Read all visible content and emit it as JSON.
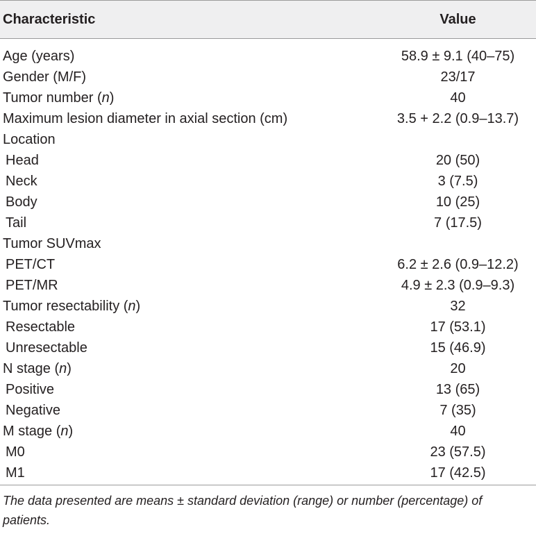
{
  "table": {
    "header": {
      "characteristic": "Characteristic",
      "value": "Value"
    },
    "rows": [
      {
        "label": "Age (years)",
        "value": "58.9 ± 9.1 (40–75)"
      },
      {
        "label": "Gender (M/F)",
        "value": "23/17"
      },
      {
        "label": "Tumor number (n)",
        "value": "40"
      },
      {
        "label": "Maximum lesion diameter in axial section (cm)",
        "value": "3.5 + 2.2 (0.9–13.7)"
      },
      {
        "label": "Location",
        "value": ""
      },
      {
        "label": "Head",
        "value": "20 (50)"
      },
      {
        "label": "Neck",
        "value": "3 (7.5)"
      },
      {
        "label": "Body",
        "value": "10 (25)"
      },
      {
        "label": "Tail",
        "value": "7 (17.5)"
      },
      {
        "label": "Tumor SUVmax",
        "value": ""
      },
      {
        "label": "PET/CT",
        "value": "6.2 ± 2.6 (0.9–12.2)"
      },
      {
        "label": "PET/MR",
        "value": "4.9 ± 2.3 (0.9–9.3)"
      },
      {
        "label": "Tumor resectability (n)",
        "value": "32"
      },
      {
        "label": "Resectable",
        "value": "17 (53.1)"
      },
      {
        "label": "Unresectable",
        "value": "15 (46.9)"
      },
      {
        "label": "N stage (n)",
        "value": "20"
      },
      {
        "label": "Positive",
        "value": "13 (65)"
      },
      {
        "label": "Negative",
        "value": "7 (35)"
      },
      {
        "label": "M stage (n)",
        "value": "40"
      },
      {
        "label": "M0",
        "value": "23 (57.5)"
      },
      {
        "label": "M1",
        "value": "17 (42.5)"
      }
    ],
    "footnote": "The data presented are means ± standard deviation (range) or number (percentage) of patients."
  }
}
